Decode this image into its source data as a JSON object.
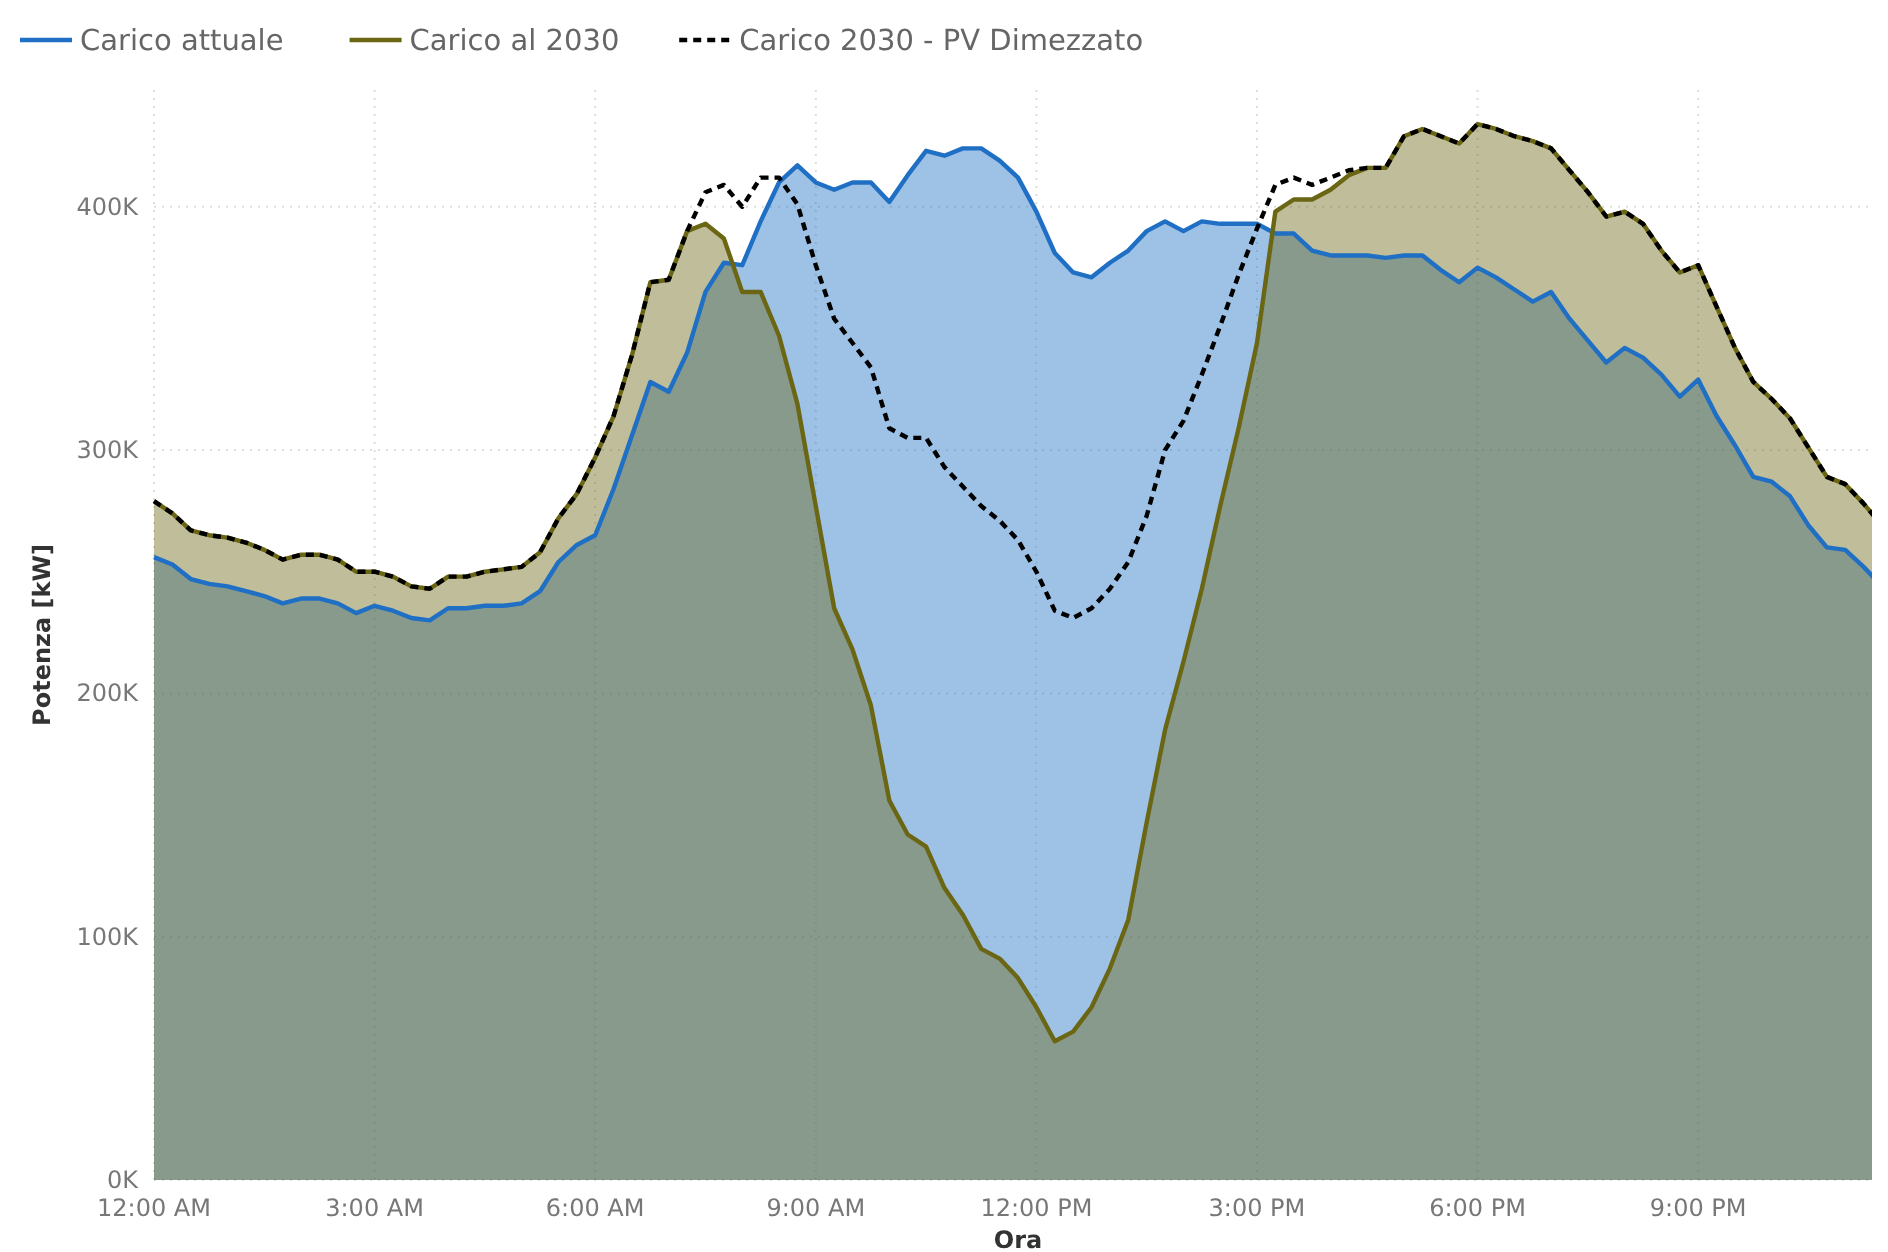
{
  "chart_data": {
    "type": "area",
    "xlabel": "Ora",
    "ylabel": "Potenza [kW]",
    "legend": "top left",
    "grid": true,
    "x": [
      0,
      0.25,
      0.5,
      0.75,
      1,
      1.25,
      1.5,
      1.75,
      2,
      2.25,
      2.5,
      2.75,
      3,
      3.25,
      3.5,
      3.75,
      4,
      4.25,
      4.5,
      4.75,
      5,
      5.25,
      5.5,
      5.75,
      6,
      6.25,
      6.5,
      6.75,
      7,
      7.25,
      7.5,
      7.75,
      8,
      8.25,
      8.5,
      8.75,
      9,
      9.25,
      9.5,
      9.75,
      10,
      10.25,
      10.5,
      10.75,
      11,
      11.25,
      11.5,
      11.75,
      12,
      12.25,
      12.5,
      12.75,
      13,
      13.25,
      13.5,
      13.75,
      14,
      14.25,
      14.5,
      14.75,
      15,
      15.25,
      15.5,
      15.75,
      16,
      16.25,
      16.5,
      16.75,
      17,
      17.25,
      17.5,
      17.75,
      18,
      18.25,
      18.5,
      18.75,
      19,
      19.25,
      19.5,
      19.75,
      20,
      20.25,
      20.5,
      20.75,
      21,
      21.25,
      21.5,
      21.75,
      22,
      22.25,
      22.5,
      22.75,
      23,
      23.25,
      23.5
    ],
    "xlim": [
      0,
      23.5
    ],
    "xticks": [
      {
        "value": 0,
        "label": "12:00 AM"
      },
      {
        "value": 3,
        "label": "3:00 AM"
      },
      {
        "value": 6,
        "label": "6:00 AM"
      },
      {
        "value": 9,
        "label": "9:00 AM"
      },
      {
        "value": 12,
        "label": "12:00 PM"
      },
      {
        "value": 15,
        "label": "3:00 PM"
      },
      {
        "value": 18,
        "label": "6:00 PM"
      },
      {
        "value": 21,
        "label": "9:00 PM"
      }
    ],
    "ylim": [
      0,
      448000
    ],
    "yticks": [
      {
        "value": 0,
        "label": "0K"
      },
      {
        "value": 100000,
        "label": "100K"
      },
      {
        "value": 200000,
        "label": "200K"
      },
      {
        "value": 300000,
        "label": "300K"
      },
      {
        "value": 400000,
        "label": "400K"
      }
    ],
    "series": [
      {
        "name": "Carico attuale",
        "color": "#1f6fc4",
        "values": [
          256000,
          253000,
          247000,
          245000,
          244000,
          242000,
          240000,
          237000,
          239000,
          239000,
          237000,
          233000,
          236000,
          234000,
          231000,
          230000,
          235000,
          235000,
          236000,
          236000,
          237000,
          242000,
          254000,
          261000,
          265000,
          284000,
          306000,
          328000,
          324000,
          340000,
          365000,
          377000,
          376000,
          394000,
          410000,
          417000,
          410000,
          407000,
          410000,
          410000,
          402000,
          413000,
          423000,
          421000,
          424000,
          424000,
          419000,
          412000,
          398000,
          381000,
          373000,
          371000,
          377000,
          382000,
          390000,
          394000,
          390000,
          394000,
          393000,
          393000,
          393000,
          389000,
          389000,
          382000,
          380000,
          380000,
          380000,
          379000,
          380000,
          380000,
          374000,
          369000,
          375000,
          371000,
          366000,
          361000,
          365000,
          354000,
          345000,
          336000,
          342000,
          338000,
          331000,
          322000,
          329000,
          314000,
          302000,
          289000,
          287000,
          281000,
          269000,
          260000,
          259000,
          252000,
          244000
        ]
      },
      {
        "name": "Carico al 2030",
        "color": "#6b6614",
        "values": [
          279000,
          274000,
          267000,
          265000,
          264000,
          262000,
          259000,
          255000,
          257000,
          257000,
          255000,
          250000,
          250000,
          248000,
          244000,
          243000,
          248000,
          248000,
          250000,
          251000,
          252000,
          258000,
          272000,
          282000,
          297000,
          314000,
          339000,
          369000,
          370000,
          390000,
          393000,
          387000,
          365000,
          365000,
          347000,
          319000,
          277000,
          235000,
          218000,
          195000,
          156000,
          142000,
          137000,
          120000,
          109000,
          95000,
          91000,
          83000,
          71000,
          57000,
          61000,
          71000,
          87000,
          107000,
          147000,
          185000,
          213000,
          243000,
          277000,
          309000,
          344000,
          398000,
          403000,
          403000,
          407000,
          413000,
          416000,
          416000,
          429000,
          432000,
          429000,
          426000,
          434000,
          432000,
          429000,
          427000,
          424000,
          415000,
          406000,
          396000,
          398000,
          393000,
          382000,
          373000,
          376000,
          359000,
          342000,
          328000,
          321000,
          313000,
          301000,
          289000,
          286000,
          278000,
          269000
        ]
      },
      {
        "name": "Carico 2030 - PV Dimezzato",
        "type": "line",
        "line_style": "dashed",
        "color": "#000000",
        "values": [
          279000,
          274000,
          267000,
          265000,
          264000,
          262000,
          259000,
          255000,
          257000,
          257000,
          255000,
          250000,
          250000,
          248000,
          244000,
          243000,
          248000,
          248000,
          250000,
          251000,
          252000,
          258000,
          272000,
          282000,
          297000,
          314000,
          339000,
          369000,
          370000,
          390000,
          406000,
          409000,
          400000,
          412000,
          412000,
          401000,
          376000,
          354000,
          344000,
          334000,
          309000,
          305000,
          305000,
          293000,
          285000,
          277000,
          271000,
          263000,
          250000,
          234000,
          231000,
          235000,
          243000,
          254000,
          273000,
          300000,
          312000,
          331000,
          351000,
          372000,
          391000,
          409000,
          412000,
          409000,
          412000,
          415000,
          416000,
          416000,
          429000,
          432000,
          429000,
          426000,
          434000,
          432000,
          429000,
          427000,
          424000,
          415000,
          406000,
          396000,
          398000,
          393000,
          382000,
          373000,
          376000,
          359000,
          342000,
          328000,
          321000,
          313000,
          301000,
          289000,
          286000,
          278000,
          269000
        ]
      }
    ]
  }
}
